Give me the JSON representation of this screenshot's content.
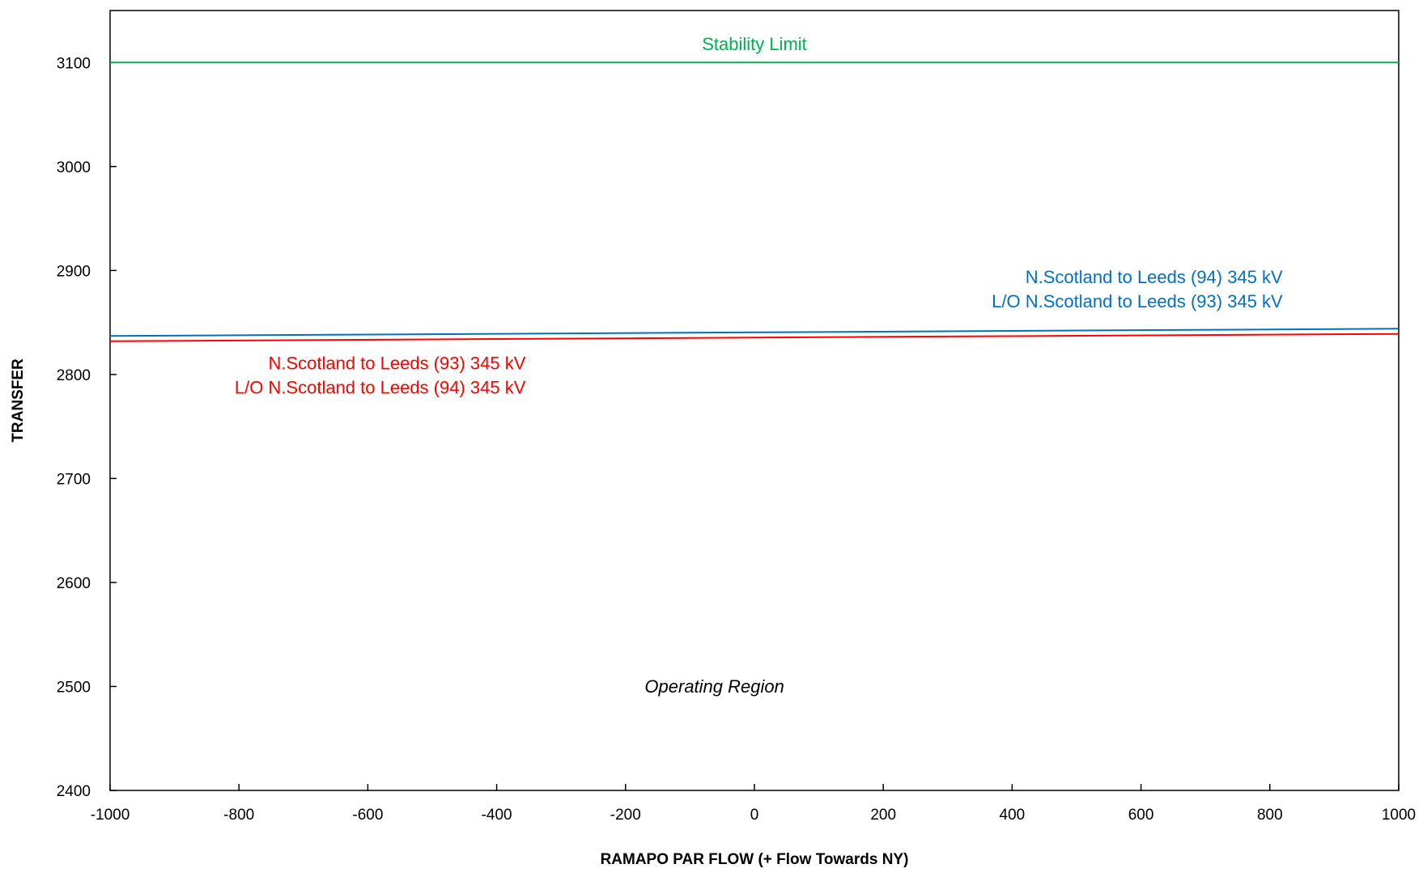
{
  "chart_data": {
    "type": "line",
    "title": "",
    "xlabel": "RAMAPO PAR FLOW (+ Flow Towards NY)",
    "ylabel": "TRANSFER",
    "xlim": [
      -1000,
      1000
    ],
    "ylim": [
      2400,
      3150
    ],
    "x_ticks": [
      -1000,
      -800,
      -600,
      -400,
      -200,
      0,
      200,
      400,
      600,
      800,
      1000
    ],
    "y_ticks": [
      2400,
      2500,
      2600,
      2700,
      2800,
      2900,
      3000,
      3100
    ],
    "grid": false,
    "legend": "none",
    "series": [
      {
        "key": "stability",
        "color": "#00b050",
        "x": [
          -1000,
          1000
        ],
        "y": [
          3100,
          3100
        ]
      },
      {
        "key": "blue",
        "color": "#0070c0",
        "x": [
          -1000,
          1000
        ],
        "y": [
          2837,
          2844
        ]
      },
      {
        "key": "red",
        "color": "#ff0000",
        "x": [
          -1000,
          1000
        ],
        "y": [
          2832,
          2839
        ]
      }
    ],
    "annotations": [
      {
        "key": "stability",
        "lines": [
          "Stability Limit"
        ],
        "color": "#00b050",
        "x": 0,
        "y": 3112,
        "anchor": "middle",
        "italic": false
      },
      {
        "key": "blue",
        "lines": [
          "N.Scotland to Leeds (94)  345  kV",
          "L/O  N.Scotland to Leeds  (93)  345  kV"
        ],
        "color": "#0070c0",
        "x": 820,
        "y": 2888,
        "anchor": "end",
        "italic": false
      },
      {
        "key": "red",
        "lines": [
          "N.Scotland to Leeds (93)  345  kV",
          "L/O  N.Scotland to Leeds  (94)  345  kV"
        ],
        "color": "#ff0000",
        "x": -355,
        "y": 2805,
        "anchor": "end",
        "italic": false
      },
      {
        "key": "region",
        "lines": [
          "Operating Region"
        ],
        "color": "#000000",
        "x": -62,
        "y": 2494,
        "anchor": "middle",
        "italic": true
      }
    ]
  }
}
